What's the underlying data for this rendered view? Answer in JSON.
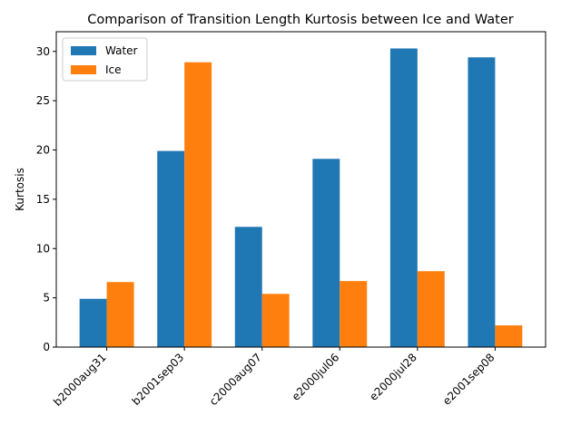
{
  "chart_data": {
    "type": "bar",
    "title": "Comparison of Transition Length Kurtosis between Ice and Water",
    "xlabel": "",
    "ylabel": "Kurtosis",
    "categories": [
      "b2000aug31",
      "b2001sep03",
      "c2000aug07",
      "e2000jul06",
      "e2000jul28",
      "e2001sep08"
    ],
    "series": [
      {
        "name": "Water",
        "color": "#1f77b4",
        "values": [
          4.9,
          19.9,
          12.2,
          19.1,
          30.3,
          29.4
        ]
      },
      {
        "name": "Ice",
        "color": "#ff7f0e",
        "values": [
          6.6,
          28.9,
          5.4,
          6.7,
          7.7,
          2.2
        ]
      }
    ],
    "ylim": [
      0,
      32
    ],
    "yticks": [
      0,
      5,
      10,
      15,
      20,
      25,
      30
    ],
    "grid": false,
    "legend_position": "top-left"
  }
}
